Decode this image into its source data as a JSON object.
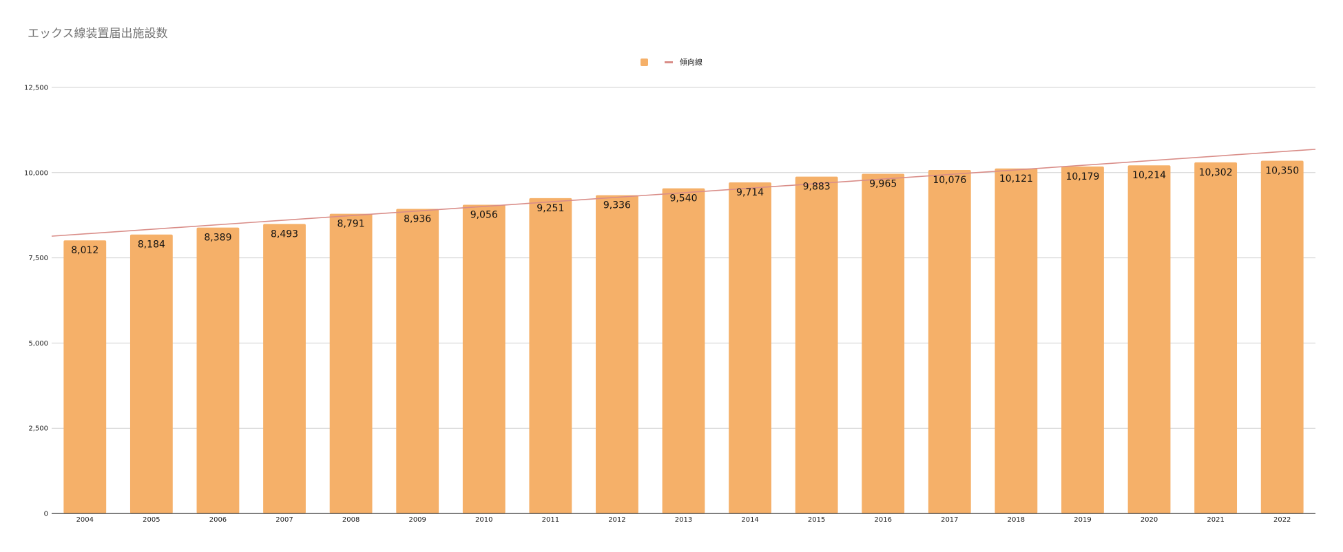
{
  "chart_data": {
    "type": "bar",
    "title": "エックス線装置届出施設数",
    "xlabel": "",
    "ylabel": "",
    "categories": [
      "2004",
      "2005",
      "2006",
      "2007",
      "2008",
      "2009",
      "2010",
      "2011",
      "2012",
      "2013",
      "2014",
      "2015",
      "2016",
      "2017",
      "2018",
      "2019",
      "2020",
      "2021",
      "2022"
    ],
    "series": [
      {
        "values": [
          8012,
          8184,
          8389,
          8493,
          8791,
          8936,
          9056,
          9251,
          9336,
          9540,
          9714,
          9883,
          9965,
          10076,
          10121,
          10179,
          10214,
          10302,
          10350
        ],
        "color": "#f5b069"
      }
    ],
    "data_labels": [
      "8,012",
      "8,184",
      "8,389",
      "8,493",
      "8,791",
      "8,936",
      "9,056",
      "9,251",
      "9,336",
      "9,540",
      "9,714",
      "9,883",
      "9,965",
      "10,076",
      "10,121",
      "10,179",
      "10,214",
      "10,302",
      "10,350"
    ],
    "trendline": {
      "name": "傾向線",
      "type": "linear",
      "color": "#d98d88"
    },
    "ylim": [
      0,
      12500
    ],
    "yticks": [
      0,
      2500,
      5000,
      7500,
      10000,
      12500
    ],
    "ytick_labels": [
      "0",
      "2,500",
      "5,000",
      "7,500",
      "10,000",
      "12,500"
    ],
    "grid": true,
    "legend_position": "top"
  }
}
